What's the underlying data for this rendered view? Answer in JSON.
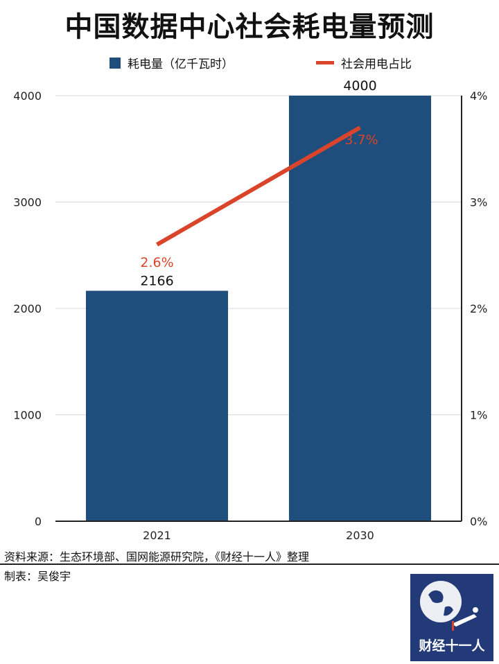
{
  "title": "中国数据中心社会耗电量预测",
  "legend": {
    "bar_label": "耗电量（亿千瓦时）",
    "line_label": "社会用电占比"
  },
  "source": "资料来源：生态环境部、国网能源研究院，《财经十一人》整理",
  "maker": "制表：吴俊宇",
  "logo": {
    "text": "财经十一人"
  },
  "colors": {
    "bar": "#1f4e7c",
    "line": "#d9442a",
    "grid": "#d8d8d8",
    "axis": "#222222",
    "logo_bg": "#233a78"
  },
  "chart_data": {
    "type": "bar",
    "categories": [
      "2021",
      "2030"
    ],
    "series": [
      {
        "name": "耗电量（亿千瓦时）",
        "type": "bar",
        "axis": "left",
        "values": [
          2166,
          4000
        ],
        "labels": [
          "2166",
          "4000"
        ]
      },
      {
        "name": "社会用电占比",
        "type": "line",
        "axis": "right",
        "values": [
          2.6,
          3.7
        ],
        "labels": [
          "2.6%",
          "3.7%"
        ]
      }
    ],
    "y_left": {
      "ylim": [
        0,
        4000
      ],
      "ticks": [
        "0",
        "1000",
        "2000",
        "3000",
        "4000"
      ]
    },
    "y_right": {
      "ylim": [
        0,
        4
      ],
      "ticks": [
        "0%",
        "1%",
        "2%",
        "3%",
        "4%"
      ]
    },
    "grid": true,
    "legend_position": "top"
  }
}
